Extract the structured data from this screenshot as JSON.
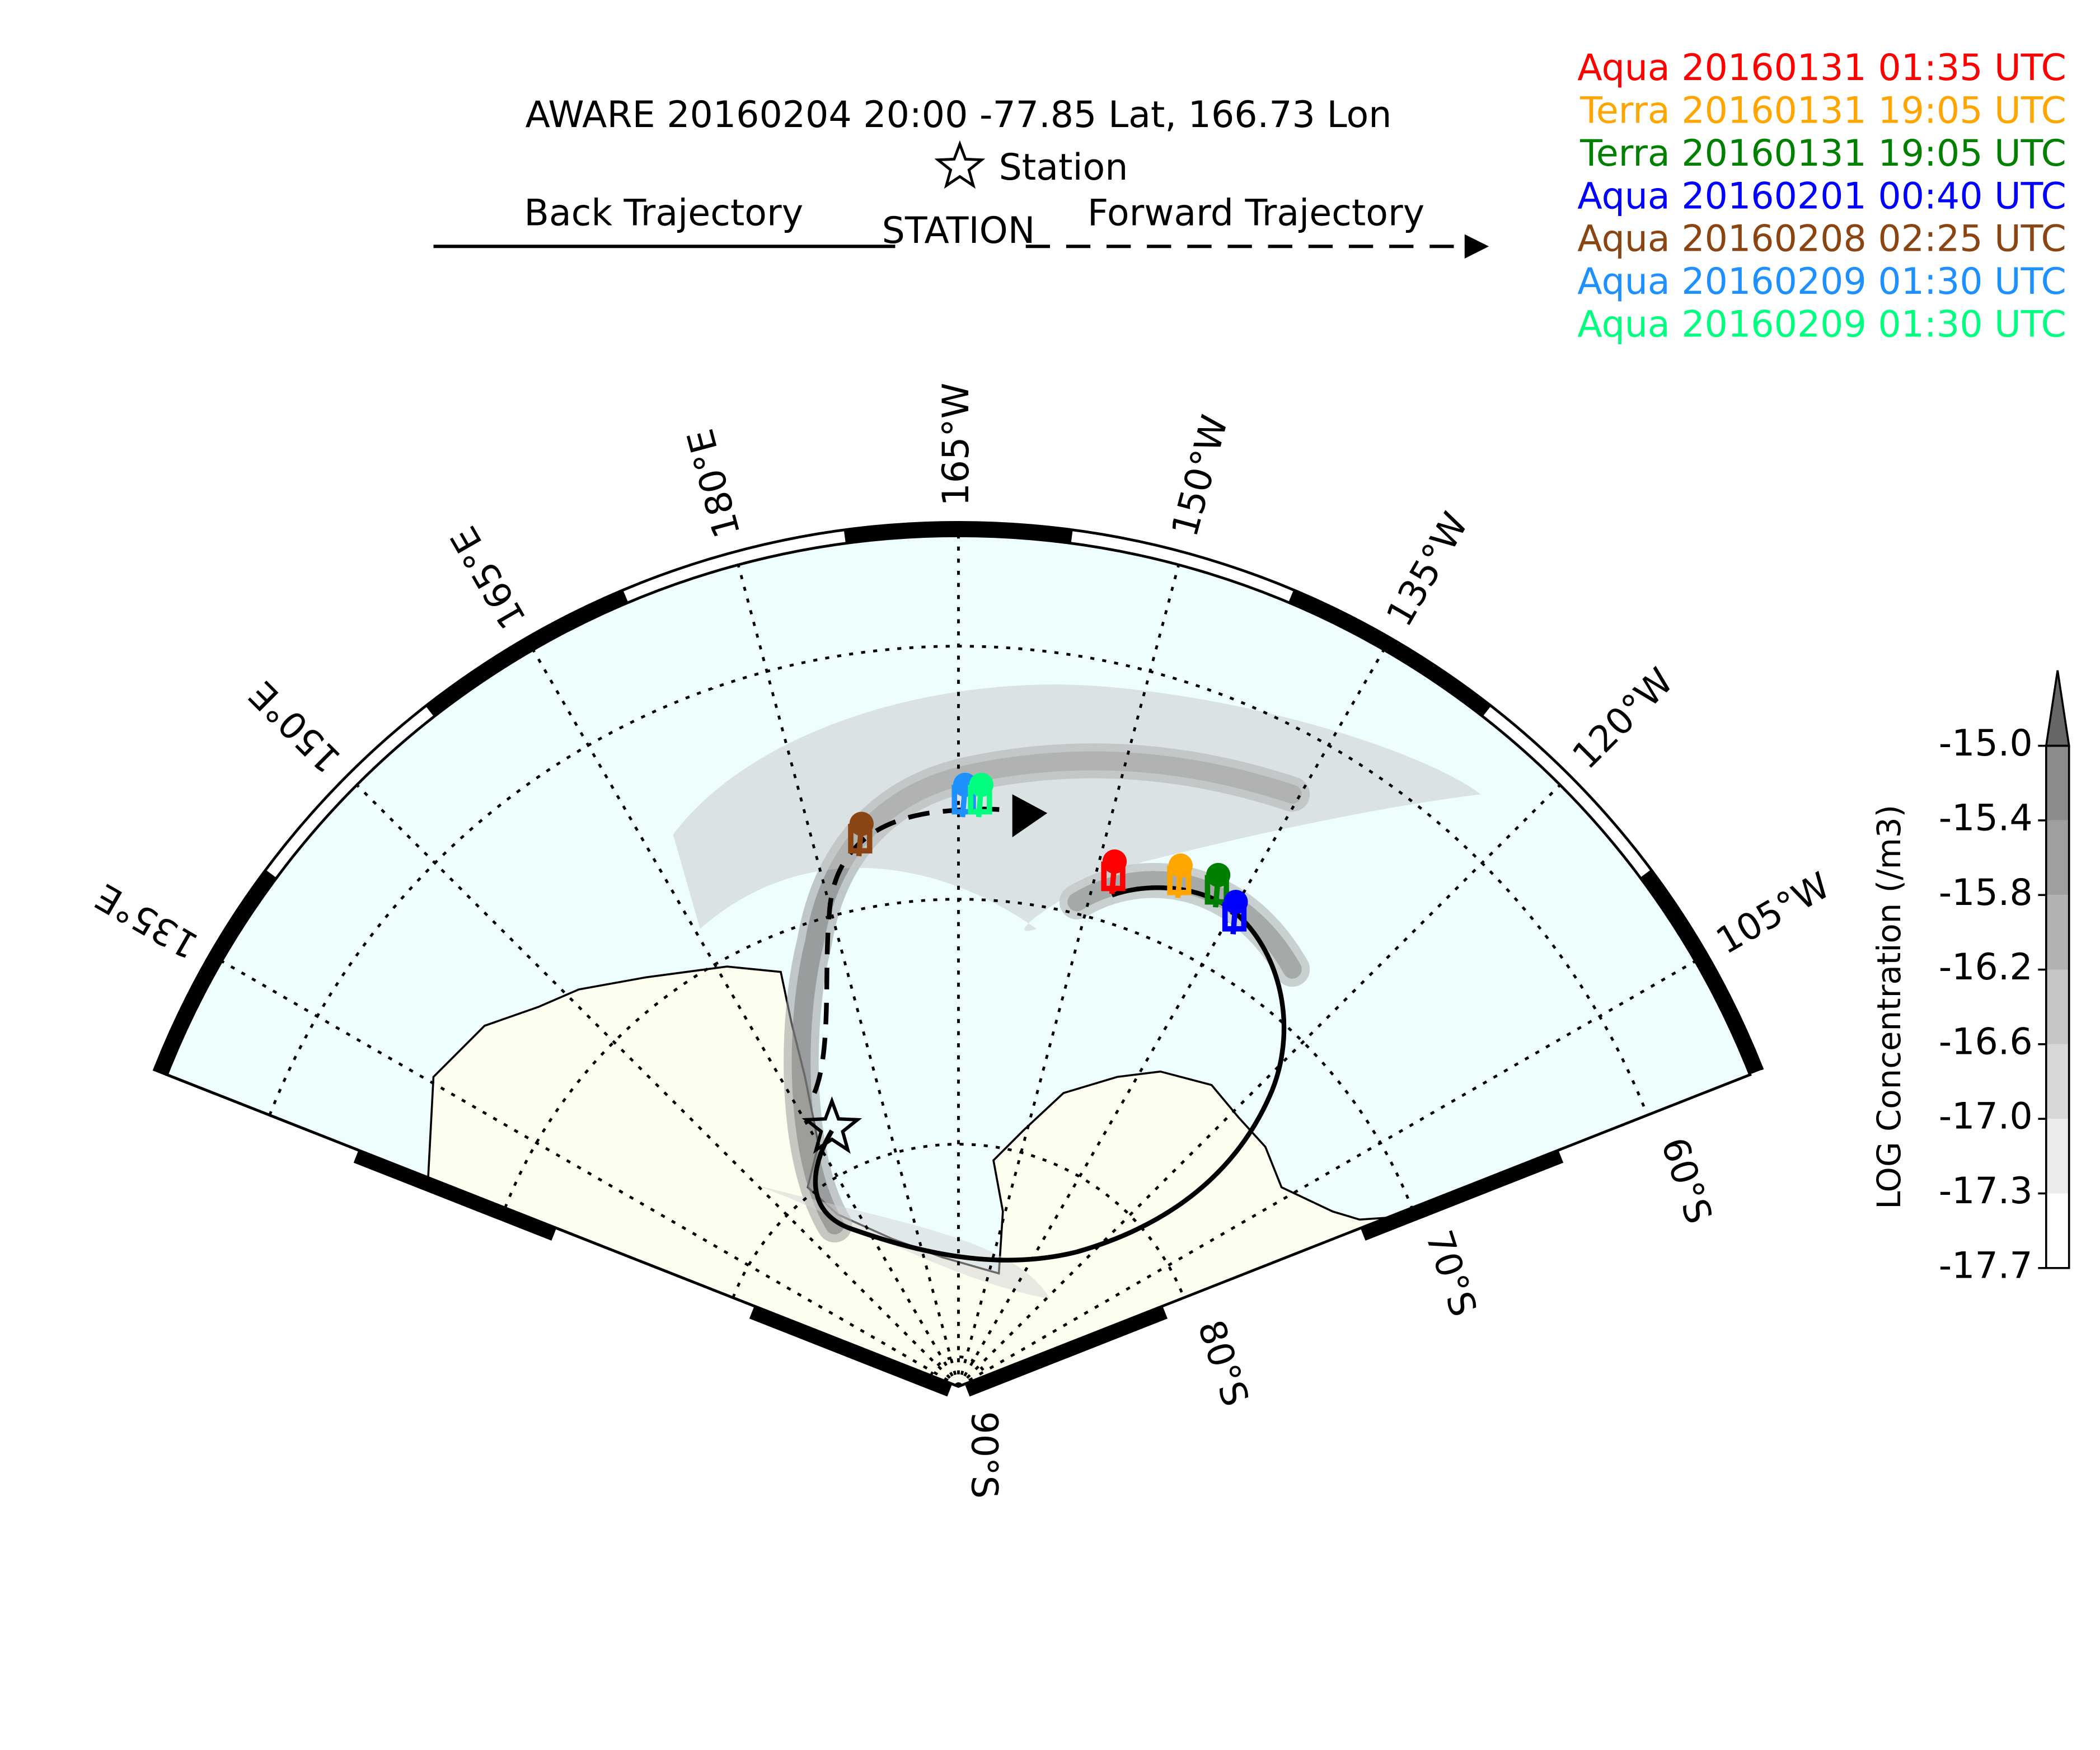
{
  "header": {
    "title": "AWARE 20160204 20:00  -77.85 Lat,  166.73 Lon",
    "station": "Station",
    "back": "Back Trajectory",
    "station_marker": "STATION",
    "forward": "Forward Trajectory"
  },
  "legend": [
    {
      "label": "Aqua 20160131 01:35 UTC",
      "color": "#ff0000"
    },
    {
      "label": "Terra 20160131 19:05 UTC",
      "color": "#ffa500"
    },
    {
      "label": "Terra 20160131 19:05 UTC",
      "color": "#008000"
    },
    {
      "label": "Aqua 20160201 00:40 UTC",
      "color": "#0000ff"
    },
    {
      "label": "Aqua 20160208 02:25 UTC",
      "color": "#8b4513"
    },
    {
      "label": "Aqua 20160209 01:30 UTC",
      "color": "#1e90ff"
    },
    {
      "label": "Aqua 20160209 01:30 UTC",
      "color": "#00ff7f"
    }
  ],
  "map": {
    "longitude_labels": [
      "135°E",
      "150°E",
      "165°E",
      "180°E",
      "165°W",
      "150°W",
      "135°W",
      "120°W",
      "105°W"
    ],
    "latitude_labels": [
      "90°S",
      "80°S",
      "70°S",
      "60°S"
    ]
  },
  "colorbar": {
    "label": "LOG Concentration (/m3)",
    "ticks": [
      {
        "value": -15.0,
        "label": "-15.0"
      },
      {
        "value": -15.4,
        "label": "-15.4"
      },
      {
        "value": -15.8,
        "label": "-15.8"
      },
      {
        "value": -16.2,
        "label": "-16.2"
      },
      {
        "value": -16.6,
        "label": "-16.6"
      },
      {
        "value": -17.0,
        "label": "-17.0"
      },
      {
        "value": -17.3,
        "label": "-17.3"
      },
      {
        "value": -17.7,
        "label": "-17.7"
      }
    ]
  }
}
